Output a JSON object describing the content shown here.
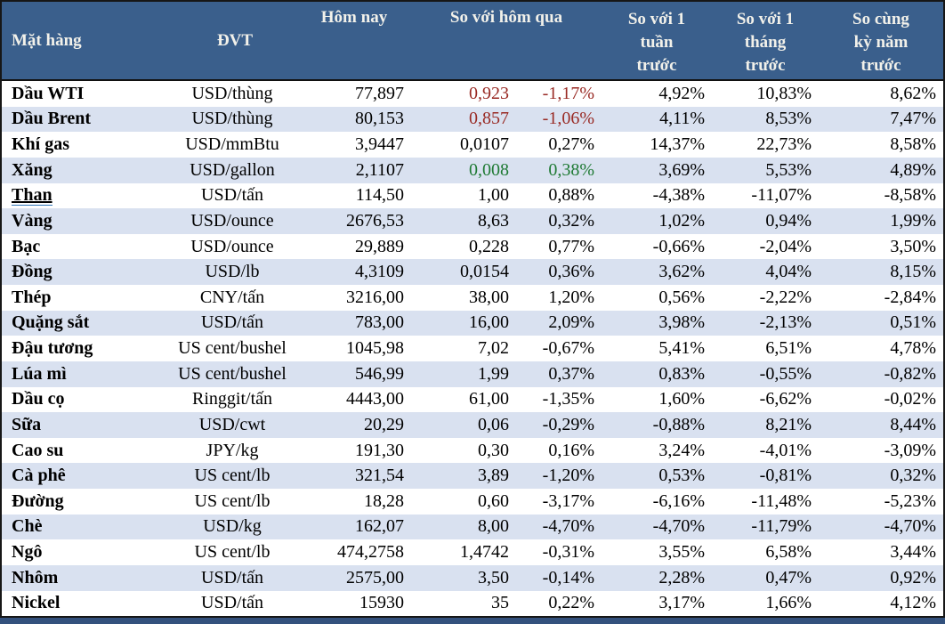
{
  "colors": {
    "header_bg": "#3A5F8C",
    "header_text": "#F2F1EA",
    "band": "#D9E1F0",
    "down_red": "#992A24",
    "up_green": "#1F7A34",
    "link_underline": "#2E74B5",
    "bottom_bar": "#33517D"
  },
  "table": {
    "headers": {
      "commodity": "Mặt hàng",
      "unit": "ĐVT",
      "today": "Hôm nay",
      "vs_yesterday": "So với hôm qua",
      "vs_week": "So với 1\ntuần\ntrước",
      "vs_month": "So với 1\ntháng\ntrước",
      "vs_year": "So cùng\nkỳ năm\ntrước"
    },
    "rows": [
      {
        "name": "Dầu WTI",
        "unit": "USD/thùng",
        "today": "77,897",
        "chg": "0,923",
        "pct": "-1,17%",
        "week": "4,92%",
        "month": "10,83%",
        "year": "8,62%",
        "trend": "down"
      },
      {
        "name": "Dầu Brent",
        "unit": "USD/thùng",
        "today": "80,153",
        "chg": "0,857",
        "pct": "-1,06%",
        "week": "4,11%",
        "month": "8,53%",
        "year": "7,47%",
        "trend": "down"
      },
      {
        "name": "Khí gas",
        "unit": "USD/mmBtu",
        "today": "3,9447",
        "chg": "0,0107",
        "pct": "0,27%",
        "week": "14,37%",
        "month": "22,73%",
        "year": "8,58%"
      },
      {
        "name": "Xăng",
        "unit": "USD/gallon",
        "today": "2,1107",
        "chg": "0,008",
        "pct": "0,38%",
        "week": "3,69%",
        "month": "5,53%",
        "year": "4,89%",
        "trend": "up"
      },
      {
        "name": "Than",
        "unit": "USD/tấn",
        "today": "114,50",
        "chg": "1,00",
        "pct": "0,88%",
        "week": "-4,38%",
        "month": "-11,07%",
        "year": "-8,58%",
        "underline": true
      },
      {
        "name": "Vàng",
        "unit": "USD/ounce",
        "today": "2676,53",
        "chg": "8,63",
        "pct": "0,32%",
        "week": "1,02%",
        "month": "0,94%",
        "year": "1,99%"
      },
      {
        "name": "Bạc",
        "unit": "USD/ounce",
        "today": "29,889",
        "chg": "0,228",
        "pct": "0,77%",
        "week": "-0,66%",
        "month": "-2,04%",
        "year": "3,50%"
      },
      {
        "name": "Đồng",
        "unit": "USD/lb",
        "today": "4,3109",
        "chg": "0,0154",
        "pct": "0,36%",
        "week": "3,62%",
        "month": "4,04%",
        "year": "8,15%"
      },
      {
        "name": "Thép",
        "unit": "CNY/tấn",
        "today": "3216,00",
        "chg": "38,00",
        "pct": "1,20%",
        "week": "0,56%",
        "month": "-2,22%",
        "year": "-2,84%"
      },
      {
        "name": "Quặng sắt",
        "unit": "USD/tấn",
        "today": "783,00",
        "chg": "16,00",
        "pct": "2,09%",
        "week": "3,98%",
        "month": "-2,13%",
        "year": "0,51%"
      },
      {
        "name": "Đậu tương",
        "unit": "US cent/bushel",
        "today": "1045,98",
        "chg": "7,02",
        "pct": "-0,67%",
        "week": "5,41%",
        "month": "6,51%",
        "year": "4,78%"
      },
      {
        "name": "Lúa mì",
        "unit": "US cent/bushel",
        "today": "546,99",
        "chg": "1,99",
        "pct": "0,37%",
        "week": "0,83%",
        "month": "-0,55%",
        "year": "-0,82%"
      },
      {
        "name": "Dầu cọ",
        "unit": "Ringgit/tấn",
        "today": "4443,00",
        "chg": "61,00",
        "pct": "-1,35%",
        "week": "1,60%",
        "month": "-6,62%",
        "year": "-0,02%"
      },
      {
        "name": "Sữa",
        "unit": "USD/cwt",
        "today": "20,29",
        "chg": "0,06",
        "pct": "-0,29%",
        "week": "-0,88%",
        "month": "8,21%",
        "year": "8,44%"
      },
      {
        "name": "Cao su",
        "unit": "JPY/kg",
        "today": "191,30",
        "chg": "0,30",
        "pct": "0,16%",
        "week": "3,24%",
        "month": "-4,01%",
        "year": "-3,09%"
      },
      {
        "name": "Cà phê",
        "unit": "US cent/lb",
        "today": "321,54",
        "chg": "3,89",
        "pct": "-1,20%",
        "week": "0,53%",
        "month": "-0,81%",
        "year": "0,32%"
      },
      {
        "name": "Đường",
        "unit": "US cent/lb",
        "today": "18,28",
        "chg": "0,60",
        "pct": "-3,17%",
        "week": "-6,16%",
        "month": "-11,48%",
        "year": "-5,23%"
      },
      {
        "name": "Chè",
        "unit": "USD/kg",
        "today": "162,07",
        "chg": "8,00",
        "pct": "-4,70%",
        "week": "-4,70%",
        "month": "-11,79%",
        "year": "-4,70%"
      },
      {
        "name": "Ngô",
        "unit": "US cent/lb",
        "today": "474,2758",
        "chg": "1,4742",
        "pct": "-0,31%",
        "week": "3,55%",
        "month": "6,58%",
        "year": "3,44%"
      },
      {
        "name": "Nhôm",
        "unit": "USD/tấn",
        "today": "2575,00",
        "chg": "3,50",
        "pct": "-0,14%",
        "week": "2,28%",
        "month": "0,47%",
        "year": "0,92%"
      },
      {
        "name": "Nickel",
        "unit": "USD/tấn",
        "today": "15930",
        "chg": "35",
        "pct": "0,22%",
        "week": "3,17%",
        "month": "1,66%",
        "year": "4,12%"
      }
    ]
  }
}
